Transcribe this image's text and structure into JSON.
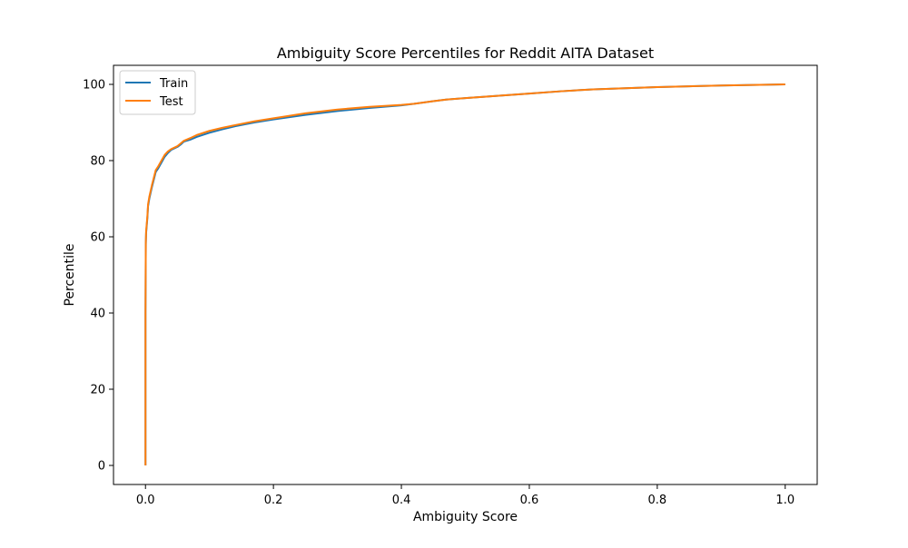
{
  "chart_data": {
    "type": "line",
    "title": "Ambiguity Score Percentiles for Reddit AITA Dataset",
    "xlabel": "Ambiguity Score",
    "ylabel": "Percentile",
    "xlim": [
      -0.05,
      1.05
    ],
    "ylim": [
      -5,
      105
    ],
    "xticks": [
      0.0,
      0.2,
      0.4,
      0.6,
      0.8,
      1.0
    ],
    "xtick_labels": [
      "0.0",
      "0.2",
      "0.4",
      "0.6",
      "0.8",
      "1.0"
    ],
    "yticks": [
      0,
      20,
      40,
      60,
      80,
      100
    ],
    "ytick_labels": [
      "0",
      "20",
      "40",
      "60",
      "80",
      "100"
    ],
    "grid": false,
    "legend_position": "top-left",
    "series": [
      {
        "name": "Train",
        "color": "#1f77b4",
        "x": [
          0.0,
          0.0,
          0.0005,
          0.001,
          0.002,
          0.003,
          0.004,
          0.006,
          0.008,
          0.01,
          0.013,
          0.016,
          0.02,
          0.025,
          0.03,
          0.035,
          0.04,
          0.05,
          0.055,
          0.06,
          0.07,
          0.08,
          0.1,
          0.12,
          0.14,
          0.17,
          0.2,
          0.25,
          0.3,
          0.35,
          0.4,
          0.42,
          0.45,
          0.47,
          0.5,
          0.55,
          0.6,
          0.65,
          0.7,
          0.75,
          0.8,
          0.85,
          0.9,
          0.95,
          1.0
        ],
        "y": [
          0,
          40,
          58,
          61,
          63,
          65,
          68,
          70,
          71.5,
          73,
          75,
          77,
          78,
          79.5,
          81,
          82,
          82.8,
          83.6,
          84.2,
          85,
          85.5,
          86.2,
          87.3,
          88.2,
          89,
          90,
          90.8,
          92,
          93,
          93.8,
          94.5,
          94.9,
          95.6,
          96,
          96.4,
          97,
          97.6,
          98.2,
          98.7,
          99,
          99.3,
          99.5,
          99.7,
          99.85,
          100
        ]
      },
      {
        "name": "Test",
        "color": "#ff7f0e",
        "x": [
          0.0,
          0.0,
          0.0005,
          0.001,
          0.002,
          0.003,
          0.004,
          0.006,
          0.008,
          0.01,
          0.013,
          0.016,
          0.02,
          0.025,
          0.03,
          0.035,
          0.04,
          0.05,
          0.055,
          0.06,
          0.07,
          0.08,
          0.1,
          0.12,
          0.14,
          0.17,
          0.2,
          0.25,
          0.3,
          0.35,
          0.4,
          0.42,
          0.45,
          0.47,
          0.5,
          0.55,
          0.6,
          0.65,
          0.7,
          0.75,
          0.8,
          0.85,
          0.9,
          0.95,
          1.0
        ],
        "y": [
          0,
          40,
          58.5,
          61.5,
          63.5,
          65.5,
          68.5,
          70.5,
          72,
          73.5,
          75.5,
          77.5,
          78.5,
          80,
          81.5,
          82.4,
          83,
          83.8,
          84.5,
          85.2,
          85.9,
          86.7,
          87.8,
          88.6,
          89.3,
          90.3,
          91.1,
          92.4,
          93.4,
          94.1,
          94.6,
          94.9,
          95.6,
          96,
          96.4,
          97,
          97.6,
          98.2,
          98.7,
          99,
          99.3,
          99.5,
          99.7,
          99.85,
          100
        ]
      }
    ]
  }
}
